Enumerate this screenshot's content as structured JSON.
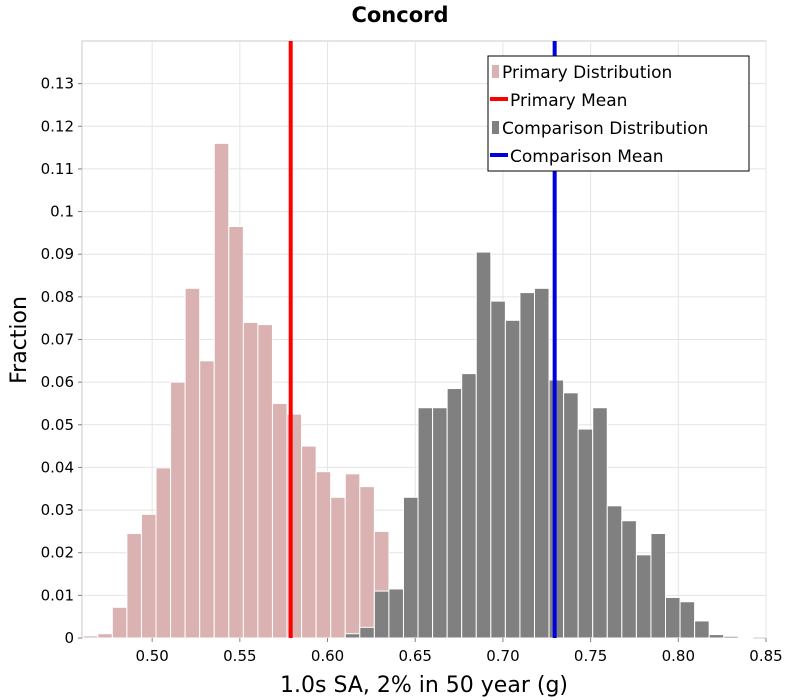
{
  "chart_data": {
    "type": "bar",
    "title": "Concord",
    "xlabel": "1.0s SA, 2% in 50 year (g)",
    "ylabel": "Fraction",
    "xlim": [
      0.46,
      0.85
    ],
    "ylim": [
      0,
      0.14
    ],
    "x_ticks": [
      "0.50",
      "0.55",
      "0.60",
      "0.65",
      "0.70",
      "0.75",
      "0.80",
      "0.85"
    ],
    "y_ticks": [
      "0",
      "0.01",
      "0.02",
      "0.03",
      "0.04",
      "0.05",
      "0.06",
      "0.07",
      "0.08",
      "0.09",
      "0.1",
      "0.11",
      "0.12",
      "0.13"
    ],
    "bin_width": 0.0083,
    "grid": true,
    "legend_position": "top-right",
    "series": [
      {
        "name": "Primary Distribution",
        "kind": "histogram",
        "color": "#dbb2b2",
        "bin_starts": [
          0.4607,
          0.469,
          0.4773,
          0.4856,
          0.4939,
          0.5022,
          0.5105,
          0.5188,
          0.5271,
          0.5354,
          0.5437,
          0.552,
          0.5603,
          0.5686,
          0.5769,
          0.5852,
          0.5935,
          0.6018,
          0.6101,
          0.6184,
          0.6267,
          0.635,
          0.6433,
          0.6516,
          0.6599
        ],
        "values": [
          0.0005,
          0.001,
          0.0072,
          0.0245,
          0.029,
          0.0399,
          0.06,
          0.082,
          0.065,
          0.116,
          0.0965,
          0.074,
          0.0735,
          0.055,
          0.0525,
          0.045,
          0.039,
          0.033,
          0.0385,
          0.0355,
          0.025,
          0.006,
          0.0025,
          0.001,
          0.0003
        ]
      },
      {
        "name": "Primary Mean",
        "kind": "vline",
        "color": "#ff0000",
        "x": 0.579
      },
      {
        "name": "Comparison Distribution",
        "kind": "histogram",
        "color": "#808080",
        "bin_starts": [
          0.6101,
          0.6184,
          0.6267,
          0.635,
          0.6433,
          0.6516,
          0.6599,
          0.6682,
          0.6765,
          0.6848,
          0.6931,
          0.7014,
          0.7097,
          0.718,
          0.7263,
          0.7346,
          0.7429,
          0.7512,
          0.7595,
          0.7678,
          0.7761,
          0.7844,
          0.7927,
          0.801,
          0.8093,
          0.8176,
          0.8259,
          0.8342
        ],
        "values": [
          0.001,
          0.0025,
          0.011,
          0.0115,
          0.033,
          0.054,
          0.054,
          0.0585,
          0.062,
          0.0905,
          0.079,
          0.0745,
          0.081,
          0.082,
          0.0605,
          0.0575,
          0.049,
          0.054,
          0.031,
          0.0275,
          0.0195,
          0.0245,
          0.0095,
          0.0085,
          0.004,
          0.0008,
          0.0004,
          0.0002
        ]
      },
      {
        "name": "Comparison Mean",
        "kind": "vline",
        "color": "#0000dd",
        "x": 0.7295
      }
    ]
  }
}
